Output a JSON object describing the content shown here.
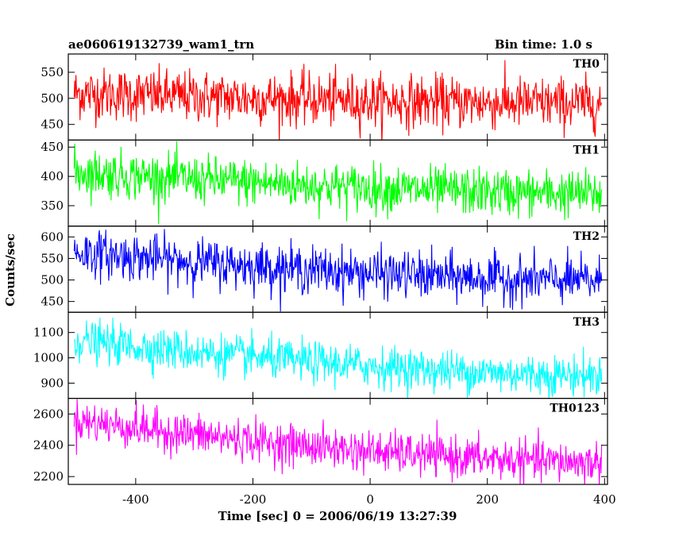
{
  "header": {
    "title": "ae060619132739_wam1_trn",
    "bin_time": "Bin time: 1.0 s"
  },
  "chart_data": {
    "type": "line",
    "x_range": [
      -515,
      405
    ],
    "xlabel": "Time [sec] 0 = 2006/06/19 13:27:39",
    "ylabel": "Counts/sec",
    "x_ticks": [
      -400,
      -200,
      0,
      200,
      400
    ],
    "x_start": -505,
    "x_end": 395,
    "bin_time": 1.0,
    "grid": false,
    "panels": [
      {
        "name": "TH0",
        "color": "#ff0000",
        "ylim": [
          420,
          585
        ],
        "yticks": [
          450,
          500,
          550
        ],
        "start_level": 510,
        "end_level": 490,
        "noise": 25
      },
      {
        "name": "TH1",
        "color": "#00ff00",
        "ylim": [
          315,
          462
        ],
        "yticks": [
          350,
          400,
          450
        ],
        "start_level": 408,
        "end_level": 370,
        "noise": 20
      },
      {
        "name": "TH2",
        "color": "#0000ff",
        "ylim": [
          425,
          625
        ],
        "yticks": [
          450,
          500,
          550,
          600
        ],
        "start_level": 565,
        "end_level": 498,
        "noise": 27
      },
      {
        "name": "TH3",
        "color": "#00ffff",
        "ylim": [
          840,
          1180
        ],
        "yticks": [
          900,
          1000,
          1100
        ],
        "start_level": 1070,
        "end_level": 930,
        "noise": 40
      },
      {
        "name": "TH0123",
        "color": "#ff00ff",
        "ylim": [
          2150,
          2700
        ],
        "yticks": [
          2200,
          2400,
          2600
        ],
        "start_level": 2560,
        "end_level": 2290,
        "noise": 65
      }
    ]
  }
}
